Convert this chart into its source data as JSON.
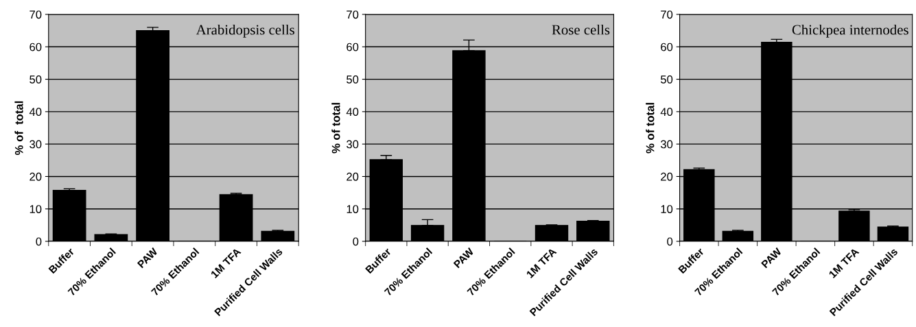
{
  "chart_data": [
    {
      "type": "bar",
      "ylabel": "% of  total",
      "annotations": [
        "Arabidopsis cells"
      ],
      "categories": [
        "Buffer",
        "70% Ethanol",
        "PAW",
        "70% Ethanol",
        "1M TFA",
        "Purified Cell Walls"
      ],
      "values": [
        15.7,
        2.1,
        65.0,
        0,
        14.4,
        3.1
      ],
      "errors": [
        [
          15.7,
          16.2
        ],
        [
          2.1,
          2.3
        ],
        [
          65.0,
          66.0
        ],
        null,
        [
          14.4,
          14.8
        ],
        [
          3.1,
          3.4
        ]
      ],
      "color": "#000000",
      "ylim": [
        0,
        70
      ],
      "yticks": [
        0,
        10,
        20,
        30,
        40,
        50,
        60,
        70
      ],
      "grid": "y"
    },
    {
      "type": "bar",
      "ylabel": "% of total",
      "annotations": [
        "Rose cells"
      ],
      "categories": [
        "Buffer",
        "70% Ethanol",
        "PAW",
        "70% Ethanol",
        "1M TFA",
        "Purified Cell Walls"
      ],
      "values": [
        25.2,
        4.9,
        58.8,
        0,
        4.9,
        6.2
      ],
      "errors": [
        [
          25.2,
          26.5
        ],
        [
          4.9,
          6.7
        ],
        [
          58.8,
          62.1
        ],
        null,
        [
          4.9,
          5.1
        ],
        [
          6.2,
          6.4
        ]
      ],
      "color": "#000000",
      "ylim": [
        0,
        70
      ],
      "yticks": [
        0,
        10,
        20,
        30,
        40,
        50,
        60,
        70
      ],
      "grid": "y"
    },
    {
      "type": "bar",
      "ylabel": "% of total",
      "annotations": [
        "Chickpea internodes"
      ],
      "categories": [
        "Buffer",
        "70% Ethanol",
        "PAW",
        "70% Ethanol",
        "1M TFA",
        "Purified Cell Walls"
      ],
      "values": [
        22.1,
        3.1,
        61.4,
        0,
        9.3,
        4.4
      ],
      "errors": [
        [
          22.1,
          22.6
        ],
        [
          3.1,
          3.4
        ],
        [
          61.4,
          62.3
        ],
        null,
        [
          9.3,
          9.8
        ],
        [
          4.4,
          4.7
        ]
      ],
      "color": "#000000",
      "ylim": [
        0,
        70
      ],
      "yticks": [
        0,
        10,
        20,
        30,
        40,
        50,
        60,
        70
      ],
      "grid": "y"
    }
  ]
}
